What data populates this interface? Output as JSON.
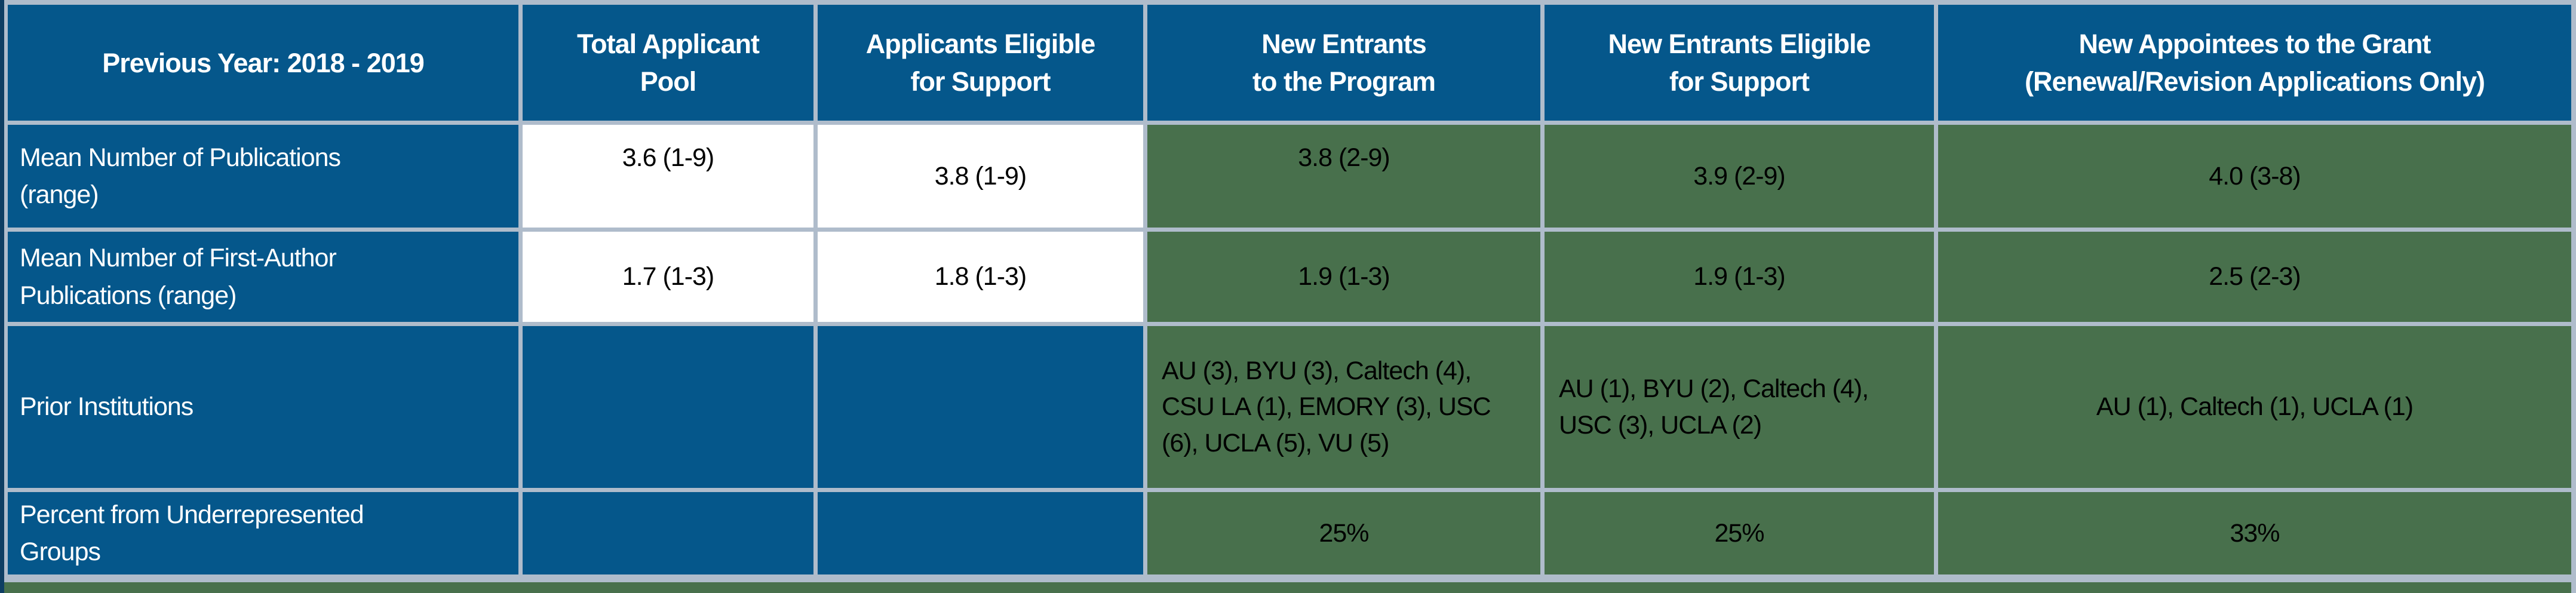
{
  "table": {
    "headers": [
      "Previous Year: 2018 - 2019",
      "Total Applicant\nPool",
      "Applicants Eligible\nfor Support",
      "New Entrants\nto the Program",
      "New Entrants Eligible\nfor Support",
      "New Appointees to the Grant\n(Renewal/Revision Applications Only)"
    ],
    "rows": [
      {
        "label": "Mean Number of Publications\n(range)",
        "cells": [
          "3.6 (1-9)",
          "3.8 (1-9)",
          "3.8 (2-9)",
          "3.9 (2-9)",
          "4.0 (3-8)"
        ]
      },
      {
        "label": "Mean Number of First-Author\nPublications (range)",
        "cells": [
          "1.7 (1-3)",
          "1.8 (1-3)",
          "1.9 (1-3)",
          "1.9 (1-3)",
          "2.5 (2-3)"
        ]
      },
      {
        "label": "Prior Institutions",
        "cells": [
          "",
          "",
          "AU (3), BYU (3), Caltech (4), CSU LA (1), EMORY (3), USC (6), UCLA (5), VU (5)",
          "AU (1), BYU (2), Caltech (4), USC (3), UCLA (2)",
          "AU (1), Caltech (1), UCLA (1)"
        ]
      },
      {
        "label": "Percent from Underrepresented\nGroups",
        "cells": [
          "",
          "",
          "25%",
          "25%",
          "33%"
        ]
      }
    ]
  },
  "colors": {
    "header_blue": "#05578B",
    "cell_green": "#48704C",
    "border_gray": "#AFBCCB",
    "edge_navy": "#0E3E63",
    "text_white": "#FFFFFF",
    "text_black": "#000000"
  }
}
